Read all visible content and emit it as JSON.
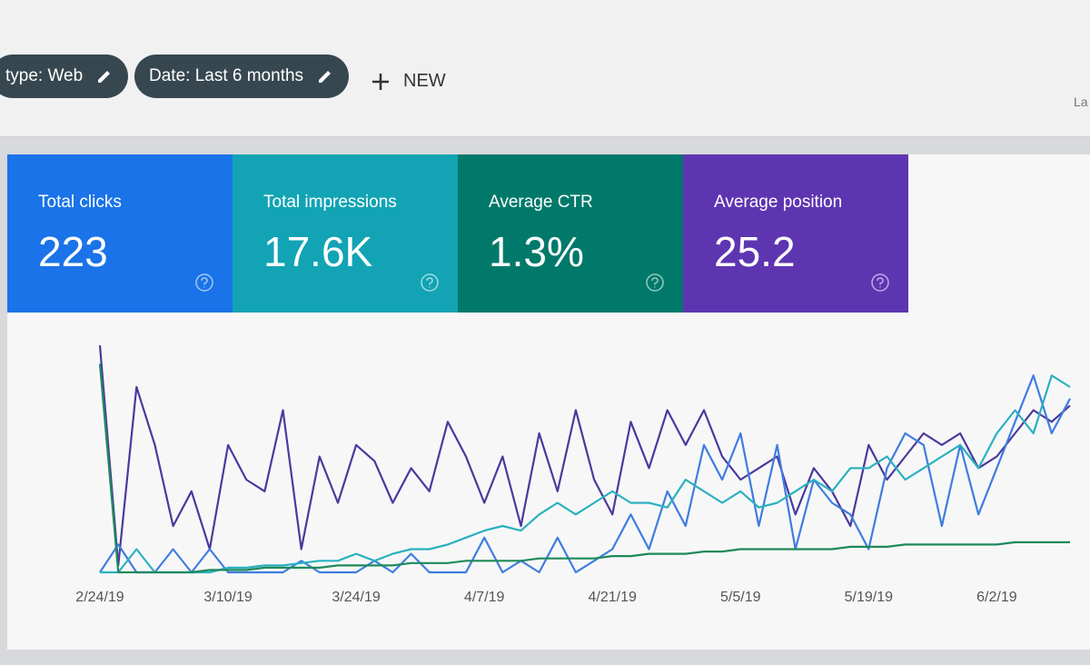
{
  "toolbar": {
    "chips": [
      "type: Web",
      "Date: Last 6 months"
    ],
    "new_button": "NEW",
    "right_text": "La"
  },
  "cards": [
    {
      "title": "Total clicks",
      "value": "223",
      "color": "#1a73e8"
    },
    {
      "title": "Total impressions",
      "value": "17.6K",
      "color": "#12a4b4"
    },
    {
      "title": "Average CTR",
      "value": "1.3%",
      "color": "#00796b"
    },
    {
      "title": "Average position",
      "value": "25.2",
      "color": "#5e35b1"
    }
  ],
  "chart_data": {
    "type": "line",
    "categories": [
      "2/24/19",
      null,
      null,
      null,
      null,
      null,
      null,
      "3/10/19",
      null,
      null,
      null,
      null,
      null,
      null,
      "3/24/19",
      null,
      null,
      null,
      null,
      null,
      null,
      "4/7/19",
      null,
      null,
      null,
      null,
      null,
      null,
      "4/21/19",
      null,
      null,
      null,
      null,
      null,
      null,
      "5/5/19",
      null,
      null,
      null,
      null,
      null,
      null,
      "5/19/19",
      null,
      null,
      null,
      null,
      null,
      null,
      "6/2/19",
      null,
      null,
      null,
      null
    ],
    "ylim": [
      0,
      100
    ],
    "series": [
      {
        "color": "#4a3a9c",
        "values": [
          98,
          3,
          80,
          55,
          20,
          35,
          10,
          55,
          40,
          35,
          70,
          10,
          50,
          30,
          55,
          48,
          30,
          45,
          35,
          65,
          50,
          30,
          50,
          20,
          60,
          35,
          70,
          40,
          25,
          65,
          45,
          70,
          55,
          70,
          50,
          40,
          45,
          50,
          25,
          45,
          35,
          20,
          55,
          40,
          50,
          60,
          55,
          60,
          45,
          50,
          60,
          70,
          65,
          72
        ]
      },
      {
        "color": "#3f7de0",
        "values": [
          0,
          12,
          0,
          0,
          10,
          0,
          10,
          0,
          0,
          0,
          0,
          5,
          0,
          0,
          0,
          5,
          0,
          8,
          0,
          0,
          0,
          15,
          0,
          5,
          0,
          15,
          0,
          5,
          10,
          25,
          10,
          35,
          20,
          55,
          40,
          60,
          20,
          55,
          10,
          40,
          30,
          25,
          10,
          45,
          60,
          55,
          20,
          55,
          25,
          45,
          65,
          85,
          60,
          75
        ]
      },
      {
        "color": "#2ab1bf",
        "values": [
          0,
          0,
          10,
          0,
          0,
          0,
          0,
          2,
          2,
          3,
          3,
          4,
          5,
          5,
          8,
          5,
          8,
          10,
          10,
          12,
          15,
          18,
          20,
          18,
          25,
          30,
          25,
          30,
          35,
          30,
          30,
          28,
          40,
          35,
          30,
          35,
          28,
          30,
          35,
          40,
          35,
          45,
          45,
          50,
          40,
          45,
          50,
          55,
          45,
          60,
          70,
          60,
          85,
          80
        ]
      },
      {
        "color": "#1e8a5a",
        "values": [
          90,
          0,
          0,
          0,
          0,
          0,
          1,
          1,
          1,
          2,
          2,
          2,
          2,
          3,
          3,
          3,
          3,
          4,
          4,
          4,
          5,
          5,
          5,
          5,
          6,
          6,
          6,
          6,
          7,
          7,
          8,
          8,
          8,
          9,
          9,
          10,
          10,
          10,
          10,
          10,
          10,
          11,
          11,
          11,
          12,
          12,
          12,
          12,
          12,
          12,
          13,
          13,
          13,
          13
        ]
      }
    ]
  }
}
